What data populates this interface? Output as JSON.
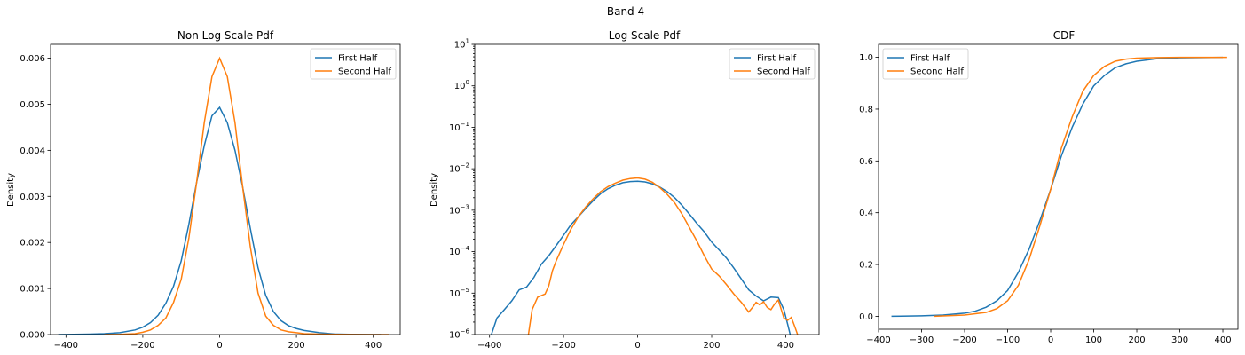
{
  "suptitle": "Band 4",
  "colors": {
    "first": "#1f77b4",
    "second": "#ff7f0e"
  },
  "chart_data": [
    {
      "type": "line",
      "title": "Non Log Scale Pdf",
      "xlabel": "",
      "ylabel": "Density",
      "xlim": [
        -440,
        470
      ],
      "ylim": [
        0,
        0.0063
      ],
      "xscale": "linear",
      "yscale": "linear",
      "xticks": [
        -400,
        -200,
        0,
        200,
        400
      ],
      "xtick_labels": [
        "−400",
        "−200",
        "0",
        "200",
        "400"
      ],
      "yticks": [
        0,
        0.001,
        0.002,
        0.003,
        0.004,
        0.005,
        0.006
      ],
      "ytick_labels": [
        "0.000",
        "0.001",
        "0.002",
        "0.003",
        "0.004",
        "0.005",
        "0.006"
      ],
      "legend_position": "top-right",
      "series": [
        {
          "name": "First Half",
          "x": [
            -420,
            -380,
            -340,
            -300,
            -260,
            -220,
            -200,
            -180,
            -160,
            -140,
            -120,
            -100,
            -80,
            -60,
            -40,
            -20,
            0,
            20,
            40,
            60,
            80,
            100,
            120,
            140,
            160,
            180,
            200,
            220,
            260,
            300,
            340,
            400,
            420
          ],
          "y": [
            0,
            5e-06,
            1e-05,
            2e-05,
            4e-05,
            0.0001,
            0.00016,
            0.00026,
            0.00042,
            0.00068,
            0.00105,
            0.0016,
            0.0024,
            0.0033,
            0.0041,
            0.00475,
            0.00493,
            0.0046,
            0.004,
            0.0032,
            0.0023,
            0.00145,
            0.00085,
            0.0005,
            0.0003,
            0.00019,
            0.00013,
            9e-05,
            4e-05,
            1e-05,
            5e-06,
            0,
            0
          ]
        },
        {
          "name": "Second Half",
          "x": [
            -300,
            -260,
            -220,
            -200,
            -180,
            -160,
            -140,
            -120,
            -100,
            -80,
            -60,
            -40,
            -20,
            0,
            20,
            40,
            60,
            80,
            100,
            120,
            140,
            160,
            180,
            200,
            220,
            260,
            300,
            340,
            400,
            440
          ],
          "y": [
            0,
            5e-06,
            2e-05,
            5e-05,
            0.0001,
            0.0002,
            0.00036,
            0.0007,
            0.0012,
            0.0021,
            0.0033,
            0.0046,
            0.0056,
            0.006,
            0.0056,
            0.0046,
            0.0032,
            0.0019,
            0.0009,
            0.0004,
            0.0002,
            0.0001,
            6e-05,
            4e-05,
            2e-05,
            1e-05,
            5e-06,
            2e-06,
            0,
            0
          ]
        }
      ]
    },
    {
      "type": "line",
      "title": "Log Scale Pdf",
      "xlabel": "",
      "ylabel": "Density",
      "xlim": [
        -440,
        490
      ],
      "ylim": [
        1e-06,
        10
      ],
      "xscale": "linear",
      "yscale": "log",
      "xticks": [
        -400,
        -200,
        0,
        200,
        400
      ],
      "xtick_labels": [
        "−400",
        "−200",
        "0",
        "200",
        "400"
      ],
      "yticks": [
        1e-06,
        1e-05,
        0.0001,
        0.001,
        0.01,
        0.1,
        1,
        10
      ],
      "ytick_base": "10",
      "ytick_exponents": [
        "−6",
        "−5",
        "−4",
        "−3",
        "−2",
        "−1",
        "0",
        "1"
      ],
      "legend_position": "top-right",
      "series": [
        {
          "name": "First Half",
          "x": [
            -395,
            -380,
            -360,
            -340,
            -320,
            -300,
            -280,
            -260,
            -240,
            -220,
            -200,
            -180,
            -160,
            -140,
            -120,
            -100,
            -80,
            -60,
            -40,
            -20,
            0,
            20,
            40,
            60,
            80,
            100,
            120,
            140,
            160,
            180,
            200,
            220,
            240,
            260,
            280,
            300,
            320,
            340,
            360,
            380,
            395,
            405,
            412
          ],
          "y": [
            1e-06,
            2.5e-06,
            4e-06,
            6.5e-06,
            1.2e-05,
            1.4e-05,
            2.4e-05,
            5e-05,
            8e-05,
            0.00014,
            0.00025,
            0.00045,
            0.0007,
            0.0011,
            0.0017,
            0.0025,
            0.0033,
            0.004,
            0.0046,
            0.0049,
            0.005,
            0.0048,
            0.0043,
            0.0036,
            0.0028,
            0.002,
            0.0013,
            0.0008,
            0.00048,
            0.0003,
            0.00017,
            0.00011,
            7e-05,
            4e-05,
            2.2e-05,
            1.2e-05,
            8.5e-06,
            6.5e-06,
            8e-06,
            7.8e-06,
            4e-06,
            1.8e-06,
            1e-06
          ]
        },
        {
          "name": "Second Half",
          "x": [
            -295,
            -285,
            -270,
            -250,
            -240,
            -230,
            -220,
            -200,
            -180,
            -160,
            -140,
            -120,
            -100,
            -80,
            -60,
            -40,
            -20,
            0,
            20,
            40,
            60,
            80,
            100,
            120,
            140,
            160,
            180,
            200,
            220,
            240,
            260,
            280,
            300,
            310,
            320,
            330,
            340,
            350,
            360,
            370,
            380,
            395,
            405,
            415,
            425,
            432
          ],
          "y": [
            1e-06,
            4e-06,
            8e-06,
            9.5e-06,
            1.5e-05,
            3.5e-05,
            6e-05,
            0.00015,
            0.00035,
            0.0007,
            0.0012,
            0.0019,
            0.0028,
            0.0037,
            0.0045,
            0.0053,
            0.0058,
            0.006,
            0.0056,
            0.0047,
            0.0035,
            0.0024,
            0.0015,
            0.0008,
            0.00038,
            0.00018,
            8e-05,
            3.8e-05,
            2.6e-05,
            1.6e-05,
            9.5e-06,
            6e-06,
            3.5e-06,
            4.5e-06,
            6e-06,
            5.2e-06,
            6.2e-06,
            4.5e-06,
            4e-06,
            5.5e-06,
            6.8e-06,
            2.5e-06,
            2.2e-06,
            2.6e-06,
            1.5e-06,
            1e-06
          ]
        }
      ]
    },
    {
      "type": "line",
      "title": "CDF",
      "xlabel": "",
      "ylabel": "",
      "xlim": [
        -400,
        435
      ],
      "ylim": [
        -0.05,
        1.05
      ],
      "xscale": "linear",
      "yscale": "linear",
      "xticks": [
        -400,
        -300,
        -200,
        -100,
        0,
        100,
        200,
        300,
        400
      ],
      "xtick_labels": [
        "−400",
        "−300",
        "−200",
        "−100",
        "0",
        "100",
        "200",
        "300",
        "400"
      ],
      "yticks": [
        0,
        0.2,
        0.4,
        0.6,
        0.8,
        1.0
      ],
      "ytick_labels": [
        "0.0",
        "0.2",
        "0.4",
        "0.6",
        "0.8",
        "1.0"
      ],
      "legend_position": "top-left",
      "series": [
        {
          "name": "First Half",
          "x": [
            -370,
            -300,
            -250,
            -200,
            -175,
            -150,
            -125,
            -100,
            -75,
            -50,
            -25,
            0,
            25,
            50,
            75,
            100,
            125,
            150,
            175,
            200,
            250,
            300,
            350,
            400
          ],
          "y": [
            0,
            0.002,
            0.005,
            0.012,
            0.02,
            0.035,
            0.06,
            0.1,
            0.17,
            0.26,
            0.37,
            0.49,
            0.62,
            0.73,
            0.82,
            0.89,
            0.93,
            0.96,
            0.975,
            0.985,
            0.995,
            0.998,
            0.999,
            1.0
          ]
        },
        {
          "name": "Second Half",
          "x": [
            -270,
            -200,
            -150,
            -125,
            -100,
            -75,
            -50,
            -25,
            0,
            25,
            50,
            75,
            100,
            125,
            150,
            175,
            200,
            250,
            300,
            350,
            410
          ],
          "y": [
            0,
            0.005,
            0.015,
            0.03,
            0.06,
            0.12,
            0.22,
            0.35,
            0.49,
            0.65,
            0.77,
            0.87,
            0.93,
            0.965,
            0.985,
            0.993,
            0.997,
            0.999,
            1.0,
            1.0,
            1.0
          ]
        }
      ]
    }
  ]
}
